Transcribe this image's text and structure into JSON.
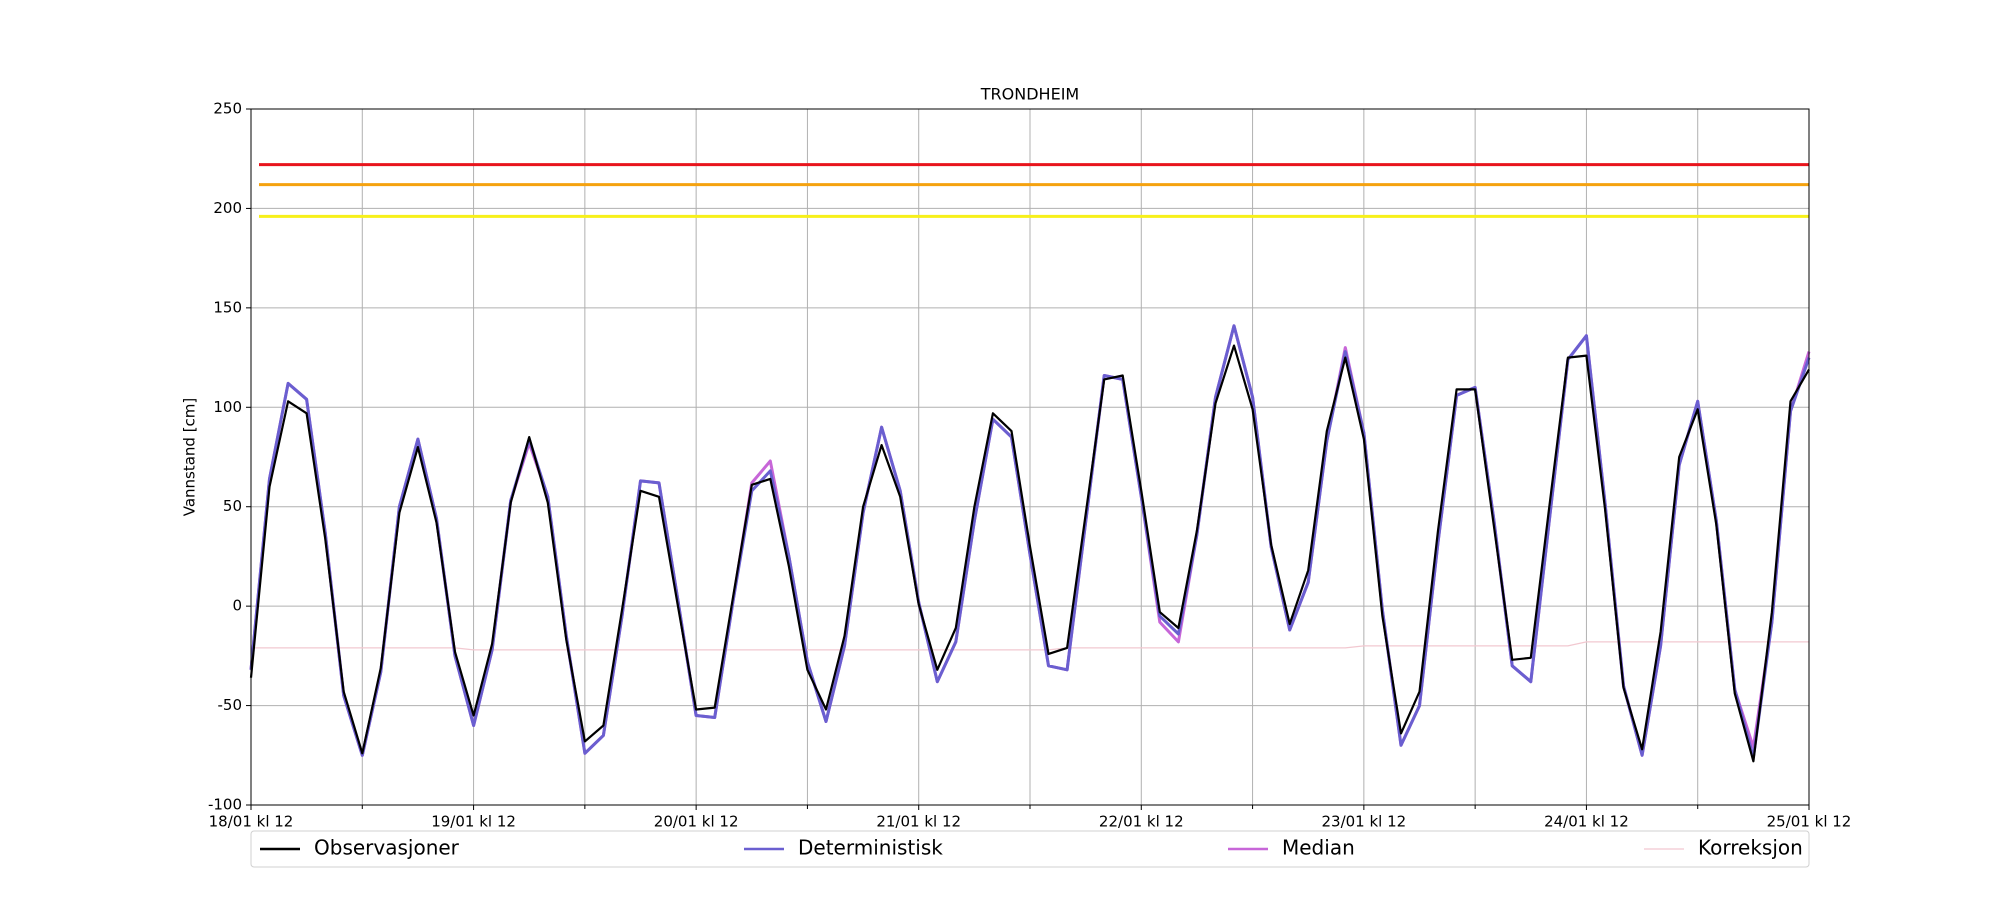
{
  "chart_data": {
    "type": "line",
    "title": "TRONDHEIM",
    "ylabel": "Vannstand [cm]",
    "x": [
      0,
      2,
      4,
      6,
      8,
      10,
      12,
      14,
      16,
      18,
      20,
      22,
      24,
      26,
      28,
      30,
      32,
      34,
      36,
      38,
      40,
      42,
      44,
      46,
      48,
      50,
      52,
      54,
      56,
      58,
      60,
      62,
      64,
      66,
      68,
      70,
      72,
      74,
      76,
      78,
      80,
      82,
      84,
      86,
      88,
      90,
      92,
      94,
      96,
      98,
      100,
      102,
      104,
      106,
      108,
      110,
      112,
      114,
      116,
      118,
      120,
      122,
      124,
      126,
      128,
      130,
      132,
      134,
      136,
      138,
      140,
      142,
      144,
      146,
      148,
      150,
      152,
      154,
      156,
      158,
      160,
      162,
      164,
      166,
      168
    ],
    "xlim": [
      0,
      168
    ],
    "xticks": [
      {
        "value": 0,
        "label": "18/01 kl 12"
      },
      {
        "value": 24,
        "label": "19/01 kl 12"
      },
      {
        "value": 48,
        "label": "20/01 kl 12"
      },
      {
        "value": 72,
        "label": "21/01 kl 12"
      },
      {
        "value": 96,
        "label": "22/01 kl 12"
      },
      {
        "value": 120,
        "label": "23/01 kl 12"
      },
      {
        "value": 144,
        "label": "24/01 kl 12"
      },
      {
        "value": 168,
        "label": "25/01 kl 12"
      }
    ],
    "xticks_minor": [
      12,
      36,
      60,
      84,
      108,
      132,
      156
    ],
    "ylim": [
      -100,
      250
    ],
    "yticks": [
      -100,
      -50,
      0,
      50,
      100,
      150,
      200,
      250
    ],
    "grid": true,
    "legend": "bottom",
    "thresholds": [
      {
        "value": 222,
        "color": "#e8141c"
      },
      {
        "value": 212,
        "color": "#f5a20f"
      },
      {
        "value": 196,
        "color": "#f7f01a"
      }
    ],
    "series": [
      {
        "name": "Observasjoner",
        "color": "#000000",
        "values": [
          -36,
          60,
          103,
          97,
          34,
          -43,
          -74,
          -31,
          47,
          80,
          42,
          -23,
          -55,
          -19,
          52,
          85,
          52,
          -17,
          -68,
          -60,
          -2,
          58,
          55,
          1,
          -52,
          -51,
          5,
          61,
          64,
          20,
          -32,
          -52,
          -15,
          50,
          81,
          55,
          1,
          -32,
          -11,
          50,
          97,
          88,
          30,
          -24,
          -21,
          46,
          114,
          116,
          58,
          -3,
          -11,
          38,
          102,
          131,
          99,
          31,
          -9,
          18,
          88,
          125,
          84,
          -5,
          -64,
          -43,
          38,
          109,
          109,
          41,
          -27,
          -26,
          50,
          125,
          126,
          49,
          -41,
          -72,
          -13,
          75,
          99,
          41,
          -44,
          -78,
          -3,
          103,
          119
        ]
      },
      {
        "name": "Deterministisk",
        "color": "#6a5fd0",
        "values": [
          -32,
          64,
          112,
          104,
          37,
          -45,
          -75,
          -33,
          50,
          84,
          44,
          -25,
          -60,
          -22,
          53,
          84,
          55,
          -15,
          -74,
          -65,
          -5,
          63,
          62,
          4,
          -55,
          -56,
          3,
          58,
          68,
          25,
          -28,
          -58,
          -20,
          47,
          90,
          58,
          2,
          -38,
          -18,
          43,
          94,
          85,
          26,
          -30,
          -32,
          42,
          116,
          114,
          55,
          -5,
          -14,
          36,
          105,
          141,
          105,
          30,
          -12,
          12,
          83,
          128,
          87,
          -2,
          -70,
          -50,
          32,
          106,
          110,
          44,
          -30,
          -38,
          43,
          124,
          136,
          52,
          -40,
          -75,
          -20,
          71,
          103,
          43,
          -42,
          -76,
          -8,
          98,
          125
        ]
      },
      {
        "name": "Median",
        "color": "#c766d8",
        "values": [
          -32,
          64,
          112,
          104,
          37,
          -45,
          -75,
          -33,
          50,
          84,
          44,
          -25,
          -60,
          -22,
          53,
          82,
          55,
          -15,
          -74,
          -65,
          -5,
          63,
          62,
          4,
          -55,
          -56,
          3,
          62,
          73,
          25,
          -28,
          -58,
          -20,
          47,
          90,
          58,
          2,
          -38,
          -18,
          43,
          94,
          85,
          26,
          -30,
          -32,
          42,
          116,
          114,
          55,
          -8,
          -18,
          36,
          105,
          141,
          105,
          30,
          -12,
          12,
          83,
          130,
          87,
          -2,
          -70,
          -50,
          32,
          106,
          110,
          44,
          -30,
          -38,
          43,
          124,
          136,
          52,
          -40,
          -75,
          -20,
          71,
          103,
          43,
          -42,
          -71,
          -8,
          98,
          128
        ]
      },
      {
        "name": "Korreksjon",
        "color": "#f2c8d0",
        "values": [
          -21,
          -21,
          -21,
          -21,
          -21,
          -21,
          -21,
          -21,
          -21,
          -21,
          -21,
          -21,
          -22,
          -22,
          -22,
          -22,
          -22,
          -22,
          -22,
          -22,
          -22,
          -22,
          -22,
          -22,
          -22,
          -22,
          -22,
          -22,
          -22,
          -22,
          -22,
          -22,
          -22,
          -22,
          -22,
          -22,
          -22,
          -22,
          -22,
          -22,
          -22,
          -22,
          -22,
          -22,
          -21,
          -21,
          -21,
          -21,
          -21,
          -21,
          -21,
          -21,
          -21,
          -21,
          -21,
          -21,
          -21,
          -21,
          -21,
          -21,
          -20,
          -20,
          -20,
          -20,
          -20,
          -20,
          -20,
          -20,
          -20,
          -20,
          -20,
          -20,
          -18,
          -18,
          -18,
          -18,
          -18,
          -18,
          -18,
          -18,
          -18,
          -18,
          -18,
          -18,
          -18
        ]
      }
    ]
  }
}
